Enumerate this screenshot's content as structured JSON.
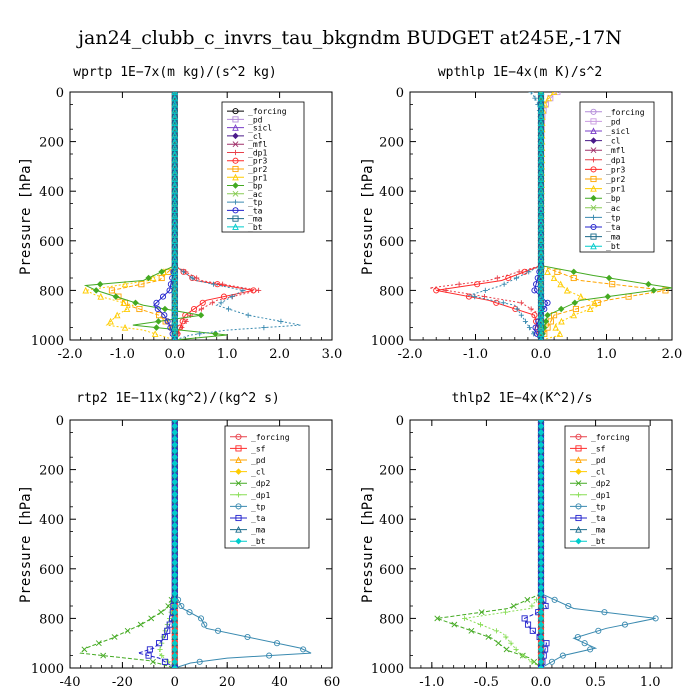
{
  "title": "jan24_clubb_c_invrs_tau_bkgndm  BUDGET at245E,-17N",
  "ylabel": "Pressure  [hPa]",
  "chart_data": [
    {
      "type": "line",
      "title": "wprtp  1E−7x(m kg)/(s^2 kg)",
      "xlim": [
        -2.0,
        3.0
      ],
      "ylim": [
        1000,
        0
      ],
      "x_ticks": [
        "-2.0",
        "-1.0",
        "0.0",
        "1.0",
        "2.0",
        "3.0"
      ],
      "x_tick_values": [
        -2,
        -1,
        0,
        1,
        2,
        3
      ],
      "y_ticks": [
        "0",
        "200",
        "400",
        "600",
        "800",
        "1000"
      ],
      "y_tick_values": [
        0,
        200,
        400,
        600,
        800,
        1000
      ],
      "series": [
        {
          "name": "_forcing",
          "color": "#000000",
          "p": [
            0,
            100,
            200,
            400,
            600,
            800,
            1000
          ],
          "x": [
            0,
            0,
            0,
            0,
            0,
            0,
            0
          ]
        },
        {
          "name": "_pd",
          "color": "#b28ad8",
          "p": [
            0,
            500,
            1000
          ],
          "x": [
            0,
            0,
            0
          ]
        },
        {
          "name": "_sicl",
          "color": "#7a3ec8",
          "p": [
            0,
            500,
            1000
          ],
          "x": [
            0,
            0,
            0
          ]
        },
        {
          "name": "_cl",
          "color": "#4a1a8a",
          "p": [
            0,
            500,
            1000
          ],
          "x": [
            0,
            0,
            0
          ]
        },
        {
          "name": "_mfl",
          "color": "#a0306a",
          "p": [
            0,
            500,
            1000
          ],
          "x": [
            0,
            0,
            0
          ]
        },
        {
          "name": "_dp1",
          "color": "#e8404a",
          "p": [
            0,
            700,
            760,
            800,
            840,
            900,
            960,
            1000
          ],
          "x": [
            0,
            0,
            0.5,
            1.6,
            0.8,
            0.3,
            0.1,
            0
          ]
        },
        {
          "name": "_pr3",
          "color": "#ff2a2a",
          "p": [
            0,
            700,
            760,
            800,
            840,
            900,
            1000
          ],
          "x": [
            0,
            0,
            0.4,
            1.5,
            0.6,
            0.2,
            0
          ]
        },
        {
          "name": "_pr2",
          "color": "#ffa500",
          "p": [
            0,
            700,
            760,
            800,
            860,
            900,
            960,
            1000
          ],
          "x": [
            0,
            0,
            -0.3,
            -1.2,
            -0.9,
            -0.3,
            0,
            0
          ]
        },
        {
          "name": "_pr1",
          "color": "#ffcc00",
          "p": [
            0,
            700,
            760,
            800,
            820,
            860,
            900,
            940,
            960,
            1000
          ],
          "x": [
            0,
            0,
            -0.5,
            -1.7,
            -1.5,
            -0.8,
            -1.1,
            -1.3,
            -0.6,
            0
          ]
        },
        {
          "name": "_bp",
          "color": "#44aa22",
          "p": [
            0,
            700,
            760,
            780,
            800,
            860,
            900,
            940,
            980,
            1000
          ],
          "x": [
            0,
            0,
            -0.6,
            -1.7,
            -1.5,
            -0.6,
            0.5,
            -0.8,
            1.0,
            0
          ]
        },
        {
          "name": "_ac",
          "color": "#88cc55",
          "p": [
            0,
            500,
            1000
          ],
          "x": [
            0,
            0,
            0
          ]
        },
        {
          "name": "_tp",
          "color": "#3a8ab0",
          "p": [
            0,
            700,
            760,
            800,
            860,
            900,
            940,
            960,
            980,
            1000
          ],
          "x": [
            0,
            0,
            0.4,
            1.3,
            0.8,
            1.4,
            2.4,
            1.0,
            0.3,
            0
          ]
        },
        {
          "name": "_ta",
          "color": "#2222cc",
          "p": [
            0,
            700,
            800,
            860,
            900,
            940,
            1000
          ],
          "x": [
            0,
            0,
            -0.1,
            -0.4,
            -0.2,
            -0.1,
            0
          ]
        },
        {
          "name": "_ma",
          "color": "#1a6a8a",
          "p": [
            0,
            500,
            1000
          ],
          "x": [
            0,
            0,
            0
          ]
        },
        {
          "name": "_bt",
          "color": "#00cccc",
          "p": [
            0,
            500,
            1000
          ],
          "x": [
            0,
            0,
            0
          ]
        }
      ]
    },
    {
      "type": "line",
      "title": "wpthlp  1E−4x(m K)/s^2",
      "xlim": [
        -2.0,
        2.0
      ],
      "ylim": [
        1000,
        0
      ],
      "x_ticks": [
        "-2.0",
        "-1.0",
        "0.0",
        "1.0",
        "2.0"
      ],
      "x_tick_values": [
        -2,
        -1,
        0,
        1,
        2
      ],
      "y_ticks": [
        "0",
        "200",
        "400",
        "600",
        "800",
        "1000"
      ],
      "y_tick_values": [
        0,
        200,
        400,
        600,
        800,
        1000
      ],
      "series": [
        {
          "name": "_forcing",
          "color": "#b28ad8",
          "p": [
            0,
            500,
            1000
          ],
          "x": [
            0,
            0,
            0
          ]
        },
        {
          "name": "_pd",
          "color": "#c89ae0",
          "p": [
            0,
            30,
            60,
            100,
            200,
            1000
          ],
          "x": [
            0.25,
            0.12,
            0.05,
            0.02,
            0,
            0
          ]
        },
        {
          "name": "_sicl",
          "color": "#7a3ec8",
          "p": [
            0,
            500,
            1000
          ],
          "x": [
            0,
            0,
            0
          ]
        },
        {
          "name": "_cl",
          "color": "#4a1a8a",
          "p": [
            0,
            500,
            1000
          ],
          "x": [
            0,
            0,
            0
          ]
        },
        {
          "name": "_mfl",
          "color": "#a0306a",
          "p": [
            0,
            500,
            1000
          ],
          "x": [
            0,
            0,
            0
          ]
        },
        {
          "name": "_dp1",
          "color": "#e8404a",
          "p": [
            0,
            700,
            760,
            790,
            810,
            850,
            900,
            1000
          ],
          "x": [
            0,
            0,
            -0.8,
            -1.7,
            -1.2,
            -0.3,
            0,
            0
          ]
        },
        {
          "name": "_pr3",
          "color": "#ff2a2a",
          "p": [
            0,
            700,
            760,
            800,
            840,
            900,
            1000
          ],
          "x": [
            0,
            0,
            -0.6,
            -1.6,
            -0.8,
            -0.1,
            0
          ]
        },
        {
          "name": "_pr2",
          "color": "#ffa500",
          "p": [
            0,
            700,
            760,
            800,
            840,
            900,
            1000
          ],
          "x": [
            0,
            0,
            0.6,
            1.9,
            1.0,
            0.2,
            0
          ]
        },
        {
          "name": "_pr1",
          "color": "#ffcc00",
          "p": [
            0,
            30,
            60,
            100,
            700,
            800,
            860,
            900,
            940,
            980,
            1000
          ],
          "x": [
            0.2,
            0.1,
            0.04,
            0.02,
            0,
            0.4,
            0.9,
            0.5,
            0.2,
            0.3,
            0
          ]
        },
        {
          "name": "_bp",
          "color": "#44aa22",
          "p": [
            0,
            700,
            740,
            790,
            840,
            900,
            1000
          ],
          "x": [
            0,
            0,
            0.8,
            2.0,
            0.6,
            0.1,
            0
          ]
        },
        {
          "name": "_ac",
          "color": "#88cc55",
          "p": [
            0,
            500,
            1000
          ],
          "x": [
            0,
            0,
            0
          ]
        },
        {
          "name": "_tp",
          "color": "#3a8ab0",
          "p": [
            0,
            30,
            60,
            100,
            700,
            780,
            820,
            860,
            900,
            940,
            980,
            1000
          ],
          "x": [
            -0.15,
            -0.08,
            -0.03,
            -0.01,
            0,
            -0.6,
            -1.1,
            -0.4,
            -0.3,
            -0.2,
            -0.1,
            0
          ]
        },
        {
          "name": "_ta",
          "color": "#2222cc",
          "p": [
            0,
            700,
            800,
            850,
            900,
            960,
            1000
          ],
          "x": [
            0,
            0,
            -0.1,
            0.1,
            0,
            -0.1,
            0
          ]
        },
        {
          "name": "_ma",
          "color": "#1a6a8a",
          "p": [
            0,
            500,
            1000
          ],
          "x": [
            0,
            0,
            0
          ]
        },
        {
          "name": "_bt",
          "color": "#00cccc",
          "p": [
            0,
            500,
            1000
          ],
          "x": [
            0,
            0,
            0
          ]
        }
      ]
    },
    {
      "type": "line",
      "title": "rtp2  1E−11x(kg^2)/(kg^2 s)",
      "xlim": [
        -40,
        60
      ],
      "ylim": [
        1000,
        0
      ],
      "x_ticks": [
        "-40",
        "-20",
        "0",
        "20",
        "40",
        "60"
      ],
      "x_tick_values": [
        -40,
        -20,
        0,
        20,
        40,
        60
      ],
      "y_ticks": [
        "0",
        "200",
        "400",
        "600",
        "800",
        "1000"
      ],
      "y_tick_values": [
        0,
        200,
        400,
        600,
        800,
        1000
      ],
      "series": [
        {
          "name": "_forcing",
          "color": "#e8404a",
          "p": [
            0,
            100,
            200,
            400,
            600,
            800,
            1000
          ],
          "x": [
            0,
            0,
            0,
            0,
            0,
            0,
            0
          ]
        },
        {
          "name": "_sf",
          "color": "#ff2a2a",
          "p": [
            0,
            500,
            1000
          ],
          "x": [
            0,
            0,
            0
          ]
        },
        {
          "name": "_pd",
          "color": "#ffa500",
          "p": [
            0,
            500,
            1000
          ],
          "x": [
            0,
            0,
            0
          ]
        },
        {
          "name": "_cl",
          "color": "#ffcc00",
          "p": [
            0,
            500,
            1000
          ],
          "x": [
            0,
            0,
            0
          ]
        },
        {
          "name": "_dp2",
          "color": "#44aa22",
          "p": [
            0,
            700,
            760,
            820,
            880,
            920,
            940,
            970,
            1000
          ],
          "x": [
            0,
            0,
            -3,
            -12,
            -24,
            -34,
            -36,
            -10,
            0
          ]
        },
        {
          "name": "_dp1",
          "color": "#88dd55",
          "p": [
            0,
            700,
            760,
            800,
            860,
            940,
            1000
          ],
          "x": [
            0,
            0,
            -1,
            -2,
            -4,
            -6,
            0
          ]
        },
        {
          "name": "_tp",
          "color": "#3a8ab0",
          "p": [
            0,
            700,
            760,
            800,
            840,
            880,
            920,
            940,
            960,
            980,
            1000
          ],
          "x": [
            0,
            0,
            3,
            10,
            12,
            30,
            48,
            52,
            20,
            6,
            0
          ]
        },
        {
          "name": "_ta",
          "color": "#2222cc",
          "p": [
            0,
            700,
            800,
            880,
            920,
            940,
            960,
            1000
          ],
          "x": [
            0,
            0,
            -1,
            -4,
            -8,
            -14,
            -6,
            0
          ]
        },
        {
          "name": "_ma",
          "color": "#1a6a8a",
          "p": [
            0,
            500,
            1000
          ],
          "x": [
            0,
            0,
            0
          ]
        },
        {
          "name": "_bt",
          "color": "#00cccc",
          "p": [
            0,
            500,
            1000
          ],
          "x": [
            0,
            0,
            0
          ]
        }
      ]
    },
    {
      "type": "line",
      "title": "thlp2  1E−4x(K^2)/s",
      "xlim": [
        -1.2,
        1.2
      ],
      "ylim": [
        1000,
        0
      ],
      "x_ticks": [
        "-1.0",
        "-0.5",
        "0.0",
        "0.5",
        "1.0"
      ],
      "x_tick_values": [
        -1.0,
        -0.5,
        0.0,
        0.5,
        1.0
      ],
      "y_ticks": [
        "0",
        "200",
        "400",
        "600",
        "800",
        "1000"
      ],
      "y_tick_values": [
        0,
        200,
        400,
        600,
        800,
        1000
      ],
      "series": [
        {
          "name": "_forcing",
          "color": "#e8404a",
          "p": [
            0,
            100,
            200,
            400,
            600,
            800,
            1000
          ],
          "x": [
            0,
            0,
            0,
            0,
            0,
            0,
            0
          ]
        },
        {
          "name": "_sf",
          "color": "#ff2a2a",
          "p": [
            0,
            500,
            1000
          ],
          "x": [
            0,
            0,
            0
          ]
        },
        {
          "name": "_pd",
          "color": "#ffa500",
          "p": [
            0,
            500,
            1000
          ],
          "x": [
            0,
            0,
            0
          ]
        },
        {
          "name": "_cl",
          "color": "#ffcc00",
          "p": [
            0,
            500,
            1000
          ],
          "x": [
            0,
            0,
            0
          ]
        },
        {
          "name": "_dp2",
          "color": "#44aa22",
          "p": [
            0,
            700,
            760,
            800,
            840,
            880,
            930,
            960,
            1000
          ],
          "x": [
            0,
            0,
            -0.3,
            -0.95,
            -0.7,
            -0.45,
            -0.3,
            -0.1,
            0
          ]
        },
        {
          "name": "_dp1",
          "color": "#88dd55",
          "p": [
            0,
            700,
            760,
            800,
            860,
            940,
            1000
          ],
          "x": [
            0,
            0,
            -0.1,
            -0.7,
            -0.35,
            -0.2,
            0
          ]
        },
        {
          "name": "_tp",
          "color": "#3a8ab0",
          "p": [
            0,
            700,
            760,
            800,
            840,
            880,
            920,
            950,
            1000
          ],
          "x": [
            0,
            0,
            0.3,
            1.05,
            0.6,
            0.3,
            0.5,
            0.2,
            0
          ]
        },
        {
          "name": "_ta",
          "color": "#2222cc",
          "p": [
            0,
            700,
            760,
            800,
            840,
            900,
            1000
          ],
          "x": [
            0,
            0,
            0.05,
            -0.15,
            -0.1,
            0.05,
            0
          ]
        },
        {
          "name": "_ma",
          "color": "#1a6a8a",
          "p": [
            0,
            500,
            1000
          ],
          "x": [
            0,
            0,
            0
          ]
        },
        {
          "name": "_bt",
          "color": "#00cccc",
          "p": [
            0,
            500,
            1000
          ],
          "x": [
            0,
            0,
            0
          ]
        }
      ]
    }
  ]
}
